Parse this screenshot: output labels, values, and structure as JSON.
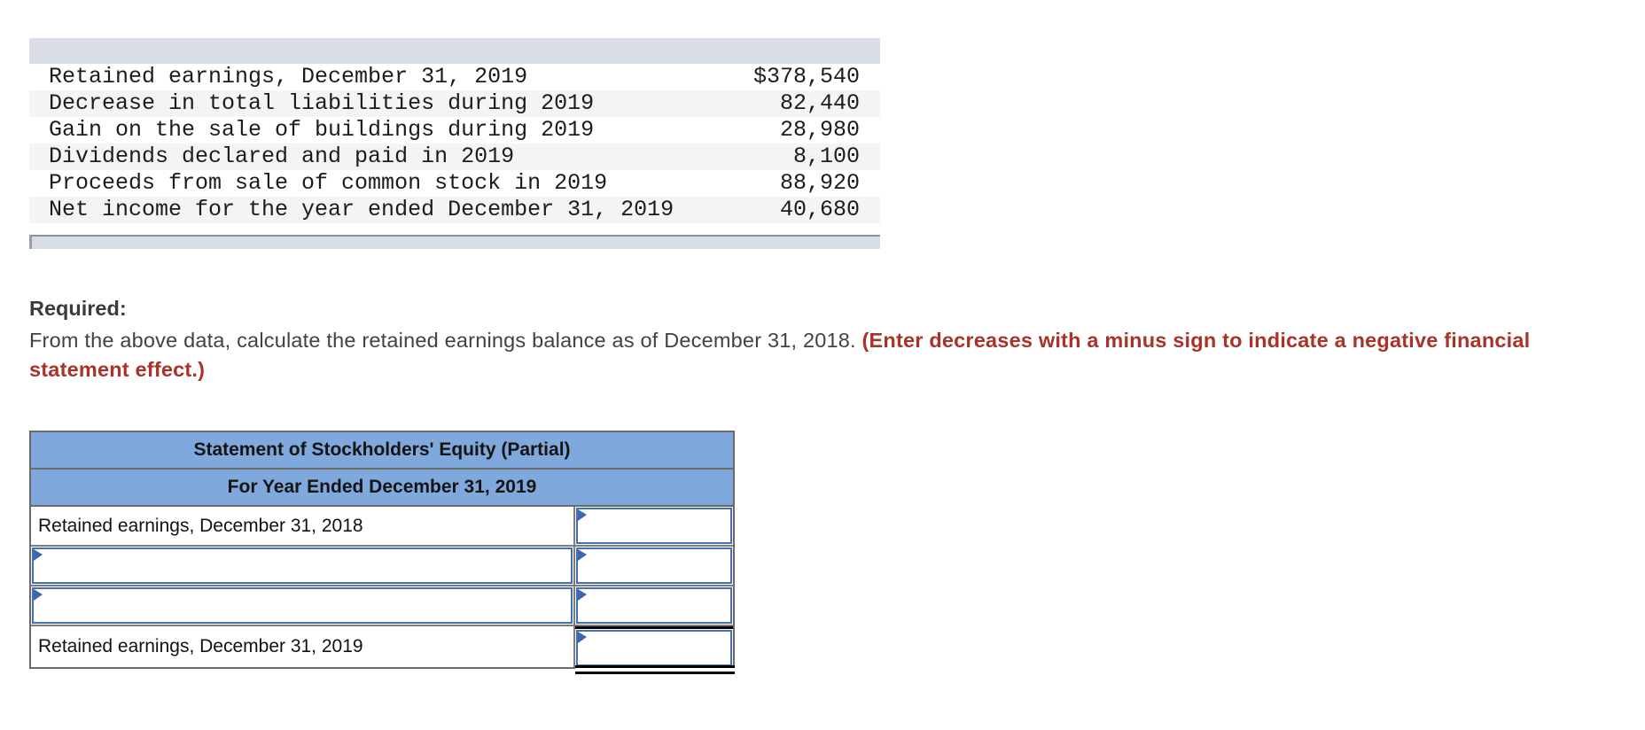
{
  "colors": {
    "header_blue": "#7fa8dc",
    "bar_gray_blue": "#d9dde6",
    "input_border_blue": "#4470b6",
    "flag_blue": "#3c67ae",
    "emphasis_red": "#ab3229",
    "table_border_gray": "#6a6a6a"
  },
  "data_table": {
    "rows": [
      {
        "label": "Retained earnings, December 31, 2019",
        "value": "$378,540"
      },
      {
        "label": "Decrease in total liabilities during 2019",
        "value": "82,440"
      },
      {
        "label": "Gain on the sale of buildings during 2019",
        "value": "28,980"
      },
      {
        "label": "Dividends declared and paid in 2019",
        "value": "8,100"
      },
      {
        "label": "Proceeds from sale of common stock in 2019",
        "value": "88,920"
      },
      {
        "label": "Net income for the year ended December 31, 2019",
        "value": "40,680"
      }
    ]
  },
  "required": {
    "heading": "Required:",
    "instruction_normal": "From the above data, calculate the retained earnings balance as of December 31, 2018. ",
    "instruction_emphasis": "(Enter decreases with a minus sign to indicate a negative financial statement effect.)"
  },
  "statement_table": {
    "title": "Statement of Stockholders' Equity (Partial)",
    "subtitle": "For Year Ended December 31, 2019",
    "row_labels": {
      "first": "Retained earnings, December 31, 2018",
      "last": "Retained earnings, December 31, 2019"
    },
    "inputs": {
      "row1_value": "",
      "row2_label": "",
      "row2_value": "",
      "row3_label": "",
      "row3_value": "",
      "row4_value": ""
    }
  }
}
